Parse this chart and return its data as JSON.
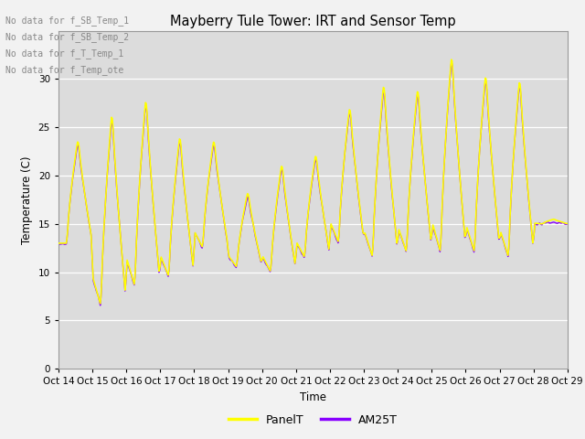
{
  "title": "Mayberry Tule Tower: IRT and Sensor Temp",
  "ylabel": "Temperature (C)",
  "xlabel": "Time",
  "ylim": [
    0,
    35
  ],
  "yticks": [
    0,
    5,
    10,
    15,
    20,
    25,
    30
  ],
  "panel_color": "#FFFF00",
  "am25_color": "#8800FF",
  "fig_facecolor": "#F2F2F2",
  "plot_facecolor": "#DCDCDC",
  "no_data_texts": [
    "No data for f_SB_Temp_1",
    "No data for f_SB_Temp_2",
    "No data for f_T_Temp_1",
    "No data for f_Temp_ote"
  ],
  "xtick_labels": [
    "Oct 14",
    "Oct 15",
    "Oct 16",
    "Oct 17",
    "Oct 18",
    "Oct 19",
    "Oct 20",
    "Oct 21",
    "Oct 22",
    "Oct 23",
    "Oct 24",
    "Oct 25",
    "Oct 26",
    "Oct 27",
    "Oct 28",
    "Oct 29"
  ],
  "day_mins": [
    13.0,
    6.5,
    8.5,
    9.5,
    12.5,
    10.5,
    10.0,
    11.5,
    13.0,
    11.5,
    12.0,
    12.0,
    12.0,
    11.5,
    15.0
  ],
  "day_maxs": [
    24.0,
    27.0,
    28.5,
    24.5,
    24.0,
    18.5,
    21.5,
    22.5,
    27.5,
    30.0,
    29.5,
    33.0,
    31.0,
    30.5,
    15.5
  ],
  "legend_entries": [
    "PanelT",
    "AM25T"
  ]
}
